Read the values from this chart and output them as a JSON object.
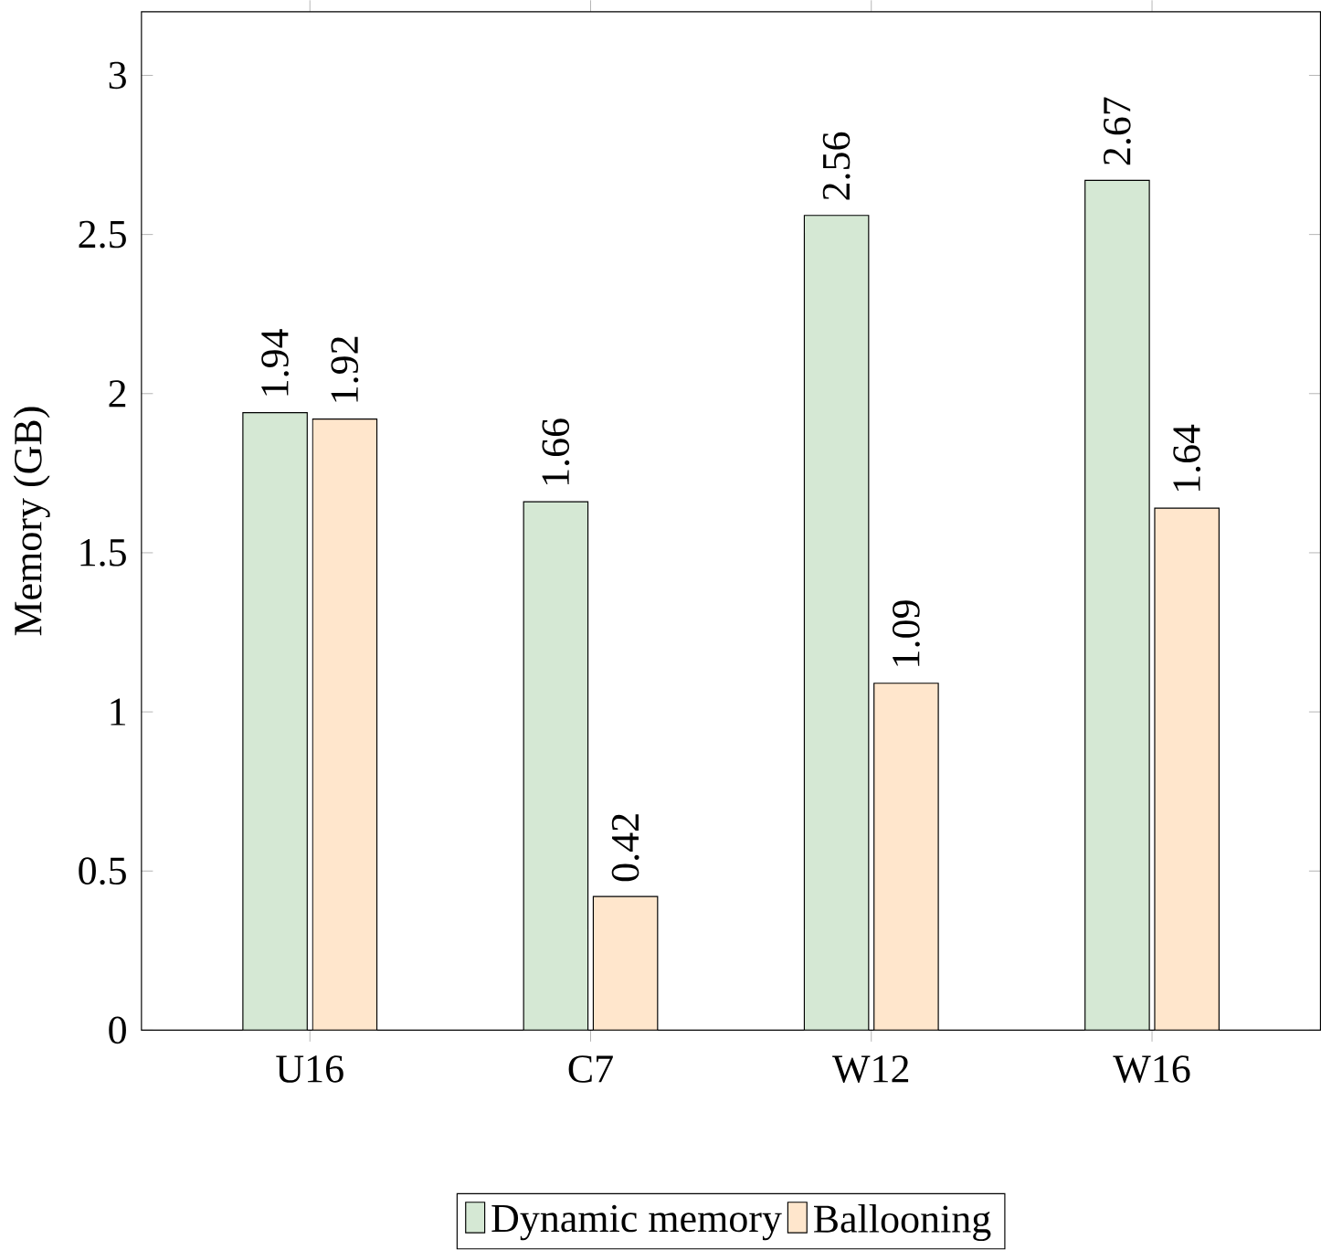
{
  "chart_data": {
    "type": "bar",
    "ylabel": "Memory (GB)",
    "categories": [
      "U16",
      "C7",
      "W12",
      "W16"
    ],
    "series": [
      {
        "name": "Dynamic memory",
        "color": "#d5e8d4",
        "values": [
          1.94,
          1.66,
          2.56,
          2.67
        ]
      },
      {
        "name": "Ballooning",
        "color": "#ffe6cc",
        "values": [
          1.92,
          0.42,
          1.09,
          1.64
        ]
      }
    ],
    "ylim": [
      0,
      3.2
    ],
    "yticks": [
      0,
      0.5,
      1,
      1.5,
      2,
      2.5,
      3
    ],
    "data_labels": true,
    "legend": "bottom"
  }
}
